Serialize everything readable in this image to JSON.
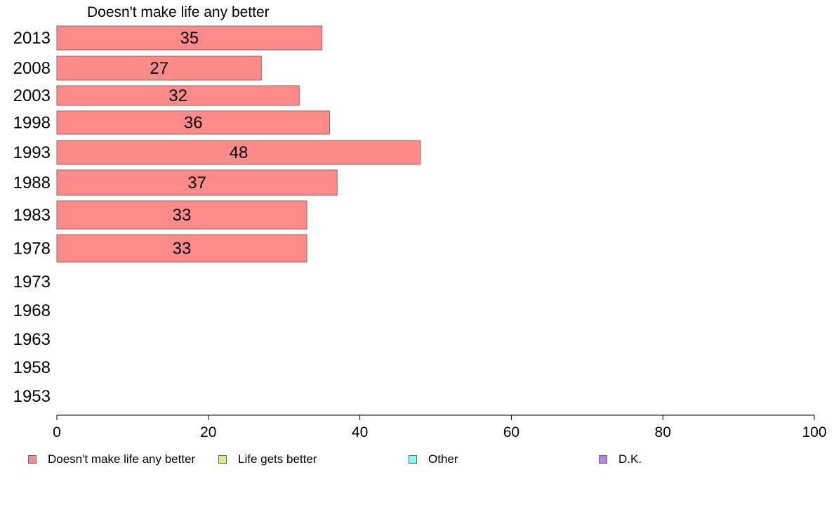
{
  "chart_data": {
    "type": "bar",
    "orientation": "horizontal",
    "title": "Doesn't make life any better",
    "categories": [
      "2013",
      "2008",
      "2003",
      "1998",
      "1993",
      "1988",
      "1983",
      "1978",
      "1973",
      "1968",
      "1963",
      "1958",
      "1953"
    ],
    "series": [
      {
        "name": "Doesn't make life any better",
        "color": "#FF8A8A",
        "values": [
          35,
          27,
          32,
          36,
          48,
          37,
          33,
          33,
          null,
          null,
          null,
          null,
          null
        ],
        "data_labels": [
          "35",
          "27",
          "32",
          "36",
          "48",
          "37",
          "33",
          "33",
          null,
          null,
          null,
          null,
          null
        ]
      }
    ],
    "xlim": [
      0,
      100
    ],
    "xticks": [
      "0",
      "20",
      "40",
      "60",
      "80",
      "100"
    ],
    "grid": false,
    "legend": {
      "placement": "bottom",
      "entries": [
        {
          "label": "Doesn't make life any better",
          "color": "#FF8A8A"
        },
        {
          "label": "Life gets better",
          "color": "#C9F57F"
        },
        {
          "label": "Other",
          "color": "#7FFFF2"
        },
        {
          "label": "D.K.",
          "color": "#B77FF5"
        }
      ]
    }
  }
}
